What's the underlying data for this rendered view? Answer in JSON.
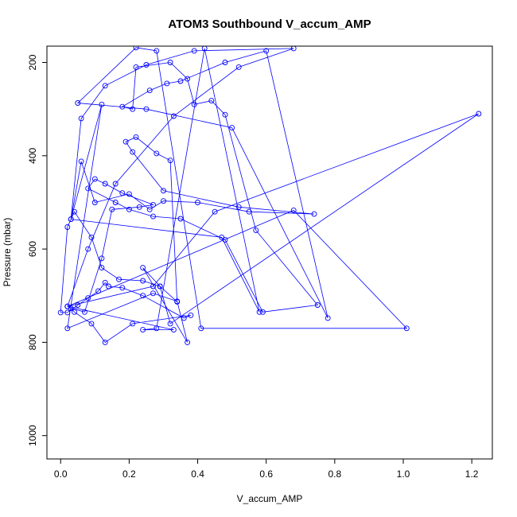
{
  "chart_data": {
    "type": "line",
    "title": "ATOM3 Southbound V_accum_AMP",
    "xlabel": "V_accum_AMP",
    "ylabel": "Pressure (mbar)",
    "xlim": [
      -0.04,
      1.26
    ],
    "ylim": [
      1050,
      165
    ],
    "y_reversed": true,
    "grid": false,
    "markers": "open-circle",
    "line_color": "#0000ff",
    "x_ticks": [
      0.0,
      0.2,
      0.4,
      0.6,
      0.8,
      1.0,
      1.2
    ],
    "x_tick_labels": [
      "0.0",
      "0.2",
      "0.4",
      "0.6",
      "0.8",
      "1.0",
      "1.2"
    ],
    "y_ticks": [
      200,
      400,
      600,
      800,
      1000
    ],
    "y_tick_labels": [
      "200",
      "400",
      "600",
      "800",
      "1000"
    ],
    "series": [
      {
        "x": [
          0.02,
          0.08,
          0.16,
          0.33,
          0.52,
          0.68,
          0.39,
          0.25,
          0.13,
          0.06,
          0.03,
          0.06,
          0.1,
          0.2,
          0.26,
          0.3,
          0.4,
          0.55,
          0.74,
          0.52,
          0.3,
          0.21,
          0.19,
          0.22,
          0.28,
          0.32,
          0.34,
          0.29,
          0.24,
          0.17,
          0.12,
          0.09,
          0.04,
          0.02,
          0.0,
          0.02,
          0.05,
          0.08,
          0.11,
          0.13,
          0.14,
          0.18,
          0.24,
          0.36,
          0.38,
          0.21,
          0.13,
          0.09,
          0.04,
          0.03,
          0.07,
          0.12,
          0.15,
          0.23,
          0.27,
          0.18,
          0.13,
          0.1,
          0.08,
          0.16,
          0.2,
          0.27,
          0.35,
          0.48,
          0.59,
          0.75,
          0.57,
          0.48,
          0.44,
          0.39,
          0.37,
          0.32,
          0.22,
          0.21,
          0.18,
          0.26,
          0.31,
          0.35,
          0.48,
          0.6,
          0.78,
          0.5,
          0.25,
          0.05,
          0.22,
          0.28,
          0.41,
          1.01,
          0.68,
          0.02,
          0.27,
          0.45,
          1.22,
          0.32,
          0.29,
          0.24,
          0.37,
          0.34,
          0.27,
          0.02,
          0.12,
          0.03,
          0.47,
          0.58,
          0.42,
          0.28,
          0.24,
          0.33,
          0.02
        ],
        "y": [
          723,
          600,
          460,
          315,
          210,
          170,
          175,
          205,
          250,
          320,
          536,
          412,
          500,
          482,
          515,
          497,
          500,
          520,
          525,
          510,
          475,
          392,
          370,
          360,
          395,
          410,
          713,
          680,
          668,
          665,
          640,
          575,
          520,
          553,
          736,
          736,
          720,
          705,
          690,
          672,
          680,
          683,
          700,
          748,
          742,
          760,
          800,
          760,
          735,
          727,
          735,
          620,
          515,
          510,
          505,
          480,
          460,
          450,
          470,
          500,
          515,
          530,
          535,
          580,
          735,
          720,
          560,
          312,
          282,
          290,
          235,
          200,
          210,
          300,
          295,
          260,
          245,
          240,
          200,
          175,
          748,
          340,
          300,
          287,
          168,
          175,
          770,
          770,
          517,
          723,
          680,
          520,
          310,
          760,
          680,
          640,
          800,
          712,
          695,
          770,
          290,
          536,
          575,
          735,
          170,
          770,
          773,
          773,
          723
        ]
      }
    ]
  }
}
